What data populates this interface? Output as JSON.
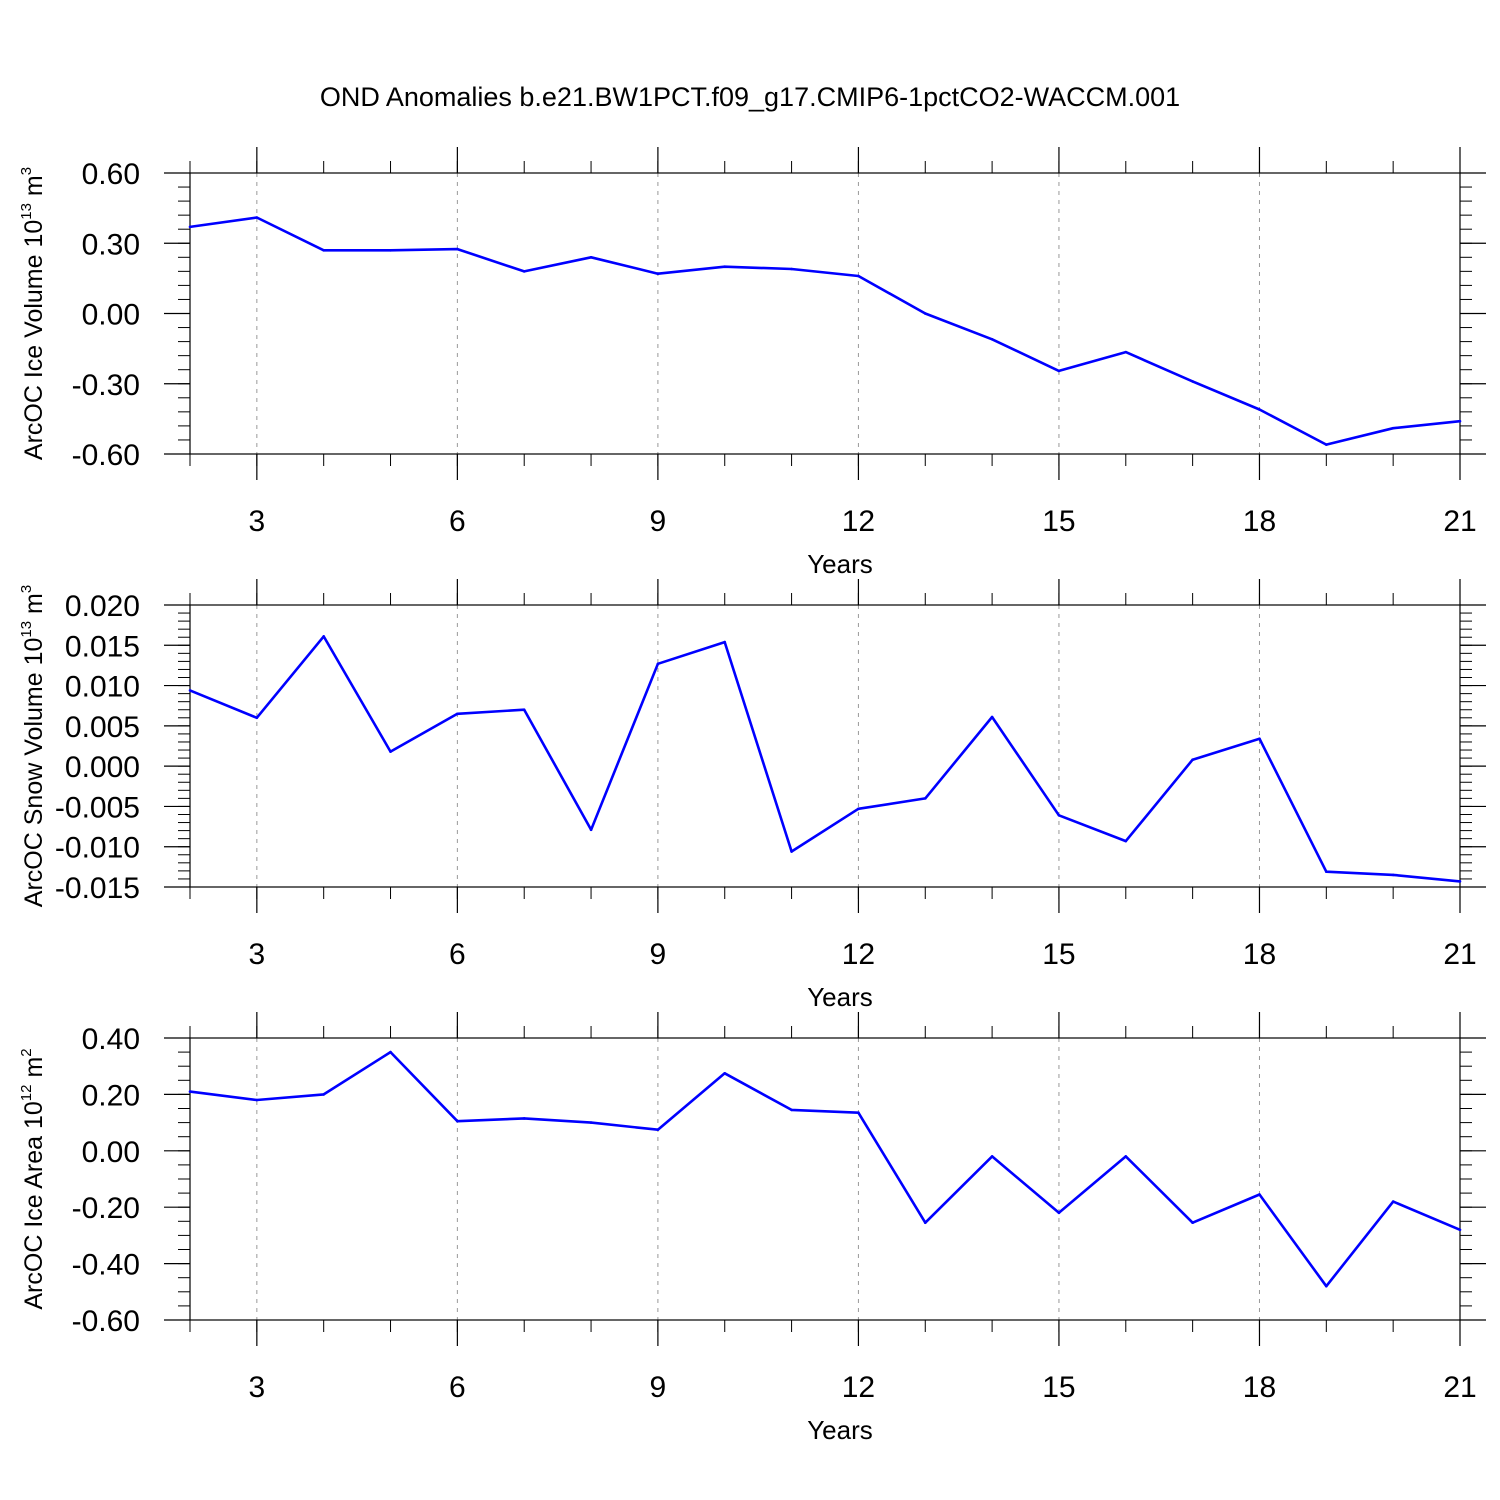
{
  "title": "OND Anomalies b.e21.BW1PCT.f09_g17.CMIP6-1pctCO2-WACCM.001",
  "colors": {
    "series_line": "#0000ff",
    "axis": "#000000",
    "grid": "#999999"
  },
  "chart_data": [
    {
      "type": "line",
      "xlabel": "Years",
      "ylabel": {
        "prefix": "ArcOC Ice Volume 10",
        "exponent": "13",
        "unit": " m",
        "unit_exponent": "3"
      },
      "xlim": [
        2,
        21
      ],
      "ylim": [
        -0.6,
        0.6
      ],
      "x_ticks": [
        3,
        6,
        9,
        12,
        15,
        18,
        21
      ],
      "x_tick_labels": [
        "3",
        "6",
        "9",
        "12",
        "15",
        "18",
        "21"
      ],
      "y_ticks": [
        0.6,
        0.3,
        0.0,
        -0.3,
        -0.6
      ],
      "y_tick_labels": [
        "0.60",
        "0.30",
        "0.00",
        "-0.30",
        "-0.60"
      ],
      "y_minor_step": 0.06,
      "grid": "vertical-dashed",
      "x": [
        2,
        3,
        4,
        5,
        6,
        7,
        8,
        9,
        10,
        11,
        12,
        13,
        14,
        15,
        16,
        17,
        18,
        19,
        20,
        21
      ],
      "values": [
        0.37,
        0.41,
        0.27,
        0.27,
        0.275,
        0.18,
        0.24,
        0.17,
        0.2,
        0.19,
        0.16,
        0.0,
        -0.11,
        -0.245,
        -0.165,
        -0.29,
        -0.41,
        -0.56,
        -0.49,
        -0.46
      ]
    },
    {
      "type": "line",
      "xlabel": "Years",
      "ylabel": {
        "prefix": "ArcOC Snow Volume 10",
        "exponent": "13",
        "unit": " m",
        "unit_exponent": "3"
      },
      "xlim": [
        2,
        21
      ],
      "ylim": [
        -0.015,
        0.02
      ],
      "x_ticks": [
        3,
        6,
        9,
        12,
        15,
        18,
        21
      ],
      "x_tick_labels": [
        "3",
        "6",
        "9",
        "12",
        "15",
        "18",
        "21"
      ],
      "y_ticks": [
        0.02,
        0.015,
        0.01,
        0.005,
        0.0,
        -0.005,
        -0.01,
        -0.015
      ],
      "y_tick_labels": [
        "0.020",
        "0.015",
        "0.010",
        "0.005",
        "0.000",
        "-0.005",
        "-0.010",
        "-0.015"
      ],
      "y_minor_step": 0.001,
      "grid": "vertical-dashed",
      "x": [
        2,
        3,
        4,
        5,
        6,
        7,
        8,
        9,
        10,
        11,
        12,
        13,
        14,
        15,
        16,
        17,
        18,
        19,
        20,
        21
      ],
      "values": [
        0.0094,
        0.006,
        0.0161,
        0.0018,
        0.0065,
        0.007,
        -0.0079,
        0.0127,
        0.0154,
        -0.0106,
        -0.0053,
        -0.004,
        0.0061,
        -0.0061,
        -0.0093,
        0.0008,
        0.0034,
        -0.0131,
        -0.0135,
        -0.0143
      ]
    },
    {
      "type": "line",
      "xlabel": "Years",
      "ylabel": {
        "prefix": "ArcOC Ice Area 10",
        "exponent": "12",
        "unit": " m",
        "unit_exponent": "2"
      },
      "xlim": [
        2,
        21
      ],
      "ylim": [
        -0.6,
        0.4
      ],
      "x_ticks": [
        3,
        6,
        9,
        12,
        15,
        18,
        21
      ],
      "x_tick_labels": [
        "3",
        "6",
        "9",
        "12",
        "15",
        "18",
        "21"
      ],
      "y_ticks": [
        0.4,
        0.2,
        0.0,
        -0.2,
        -0.4,
        -0.6
      ],
      "y_tick_labels": [
        "0.40",
        "0.20",
        "0.00",
        "-0.20",
        "-0.40",
        "-0.60"
      ],
      "y_minor_step": 0.05,
      "grid": "vertical-dashed",
      "x": [
        2,
        3,
        4,
        5,
        6,
        7,
        8,
        9,
        10,
        11,
        12,
        13,
        14,
        15,
        16,
        17,
        18,
        19,
        20,
        21
      ],
      "values": [
        0.21,
        0.18,
        0.2,
        0.35,
        0.105,
        0.115,
        0.1,
        0.075,
        0.275,
        0.145,
        0.135,
        -0.255,
        -0.02,
        -0.22,
        -0.02,
        -0.255,
        -0.155,
        -0.48,
        -0.18,
        -0.28
      ]
    }
  ]
}
